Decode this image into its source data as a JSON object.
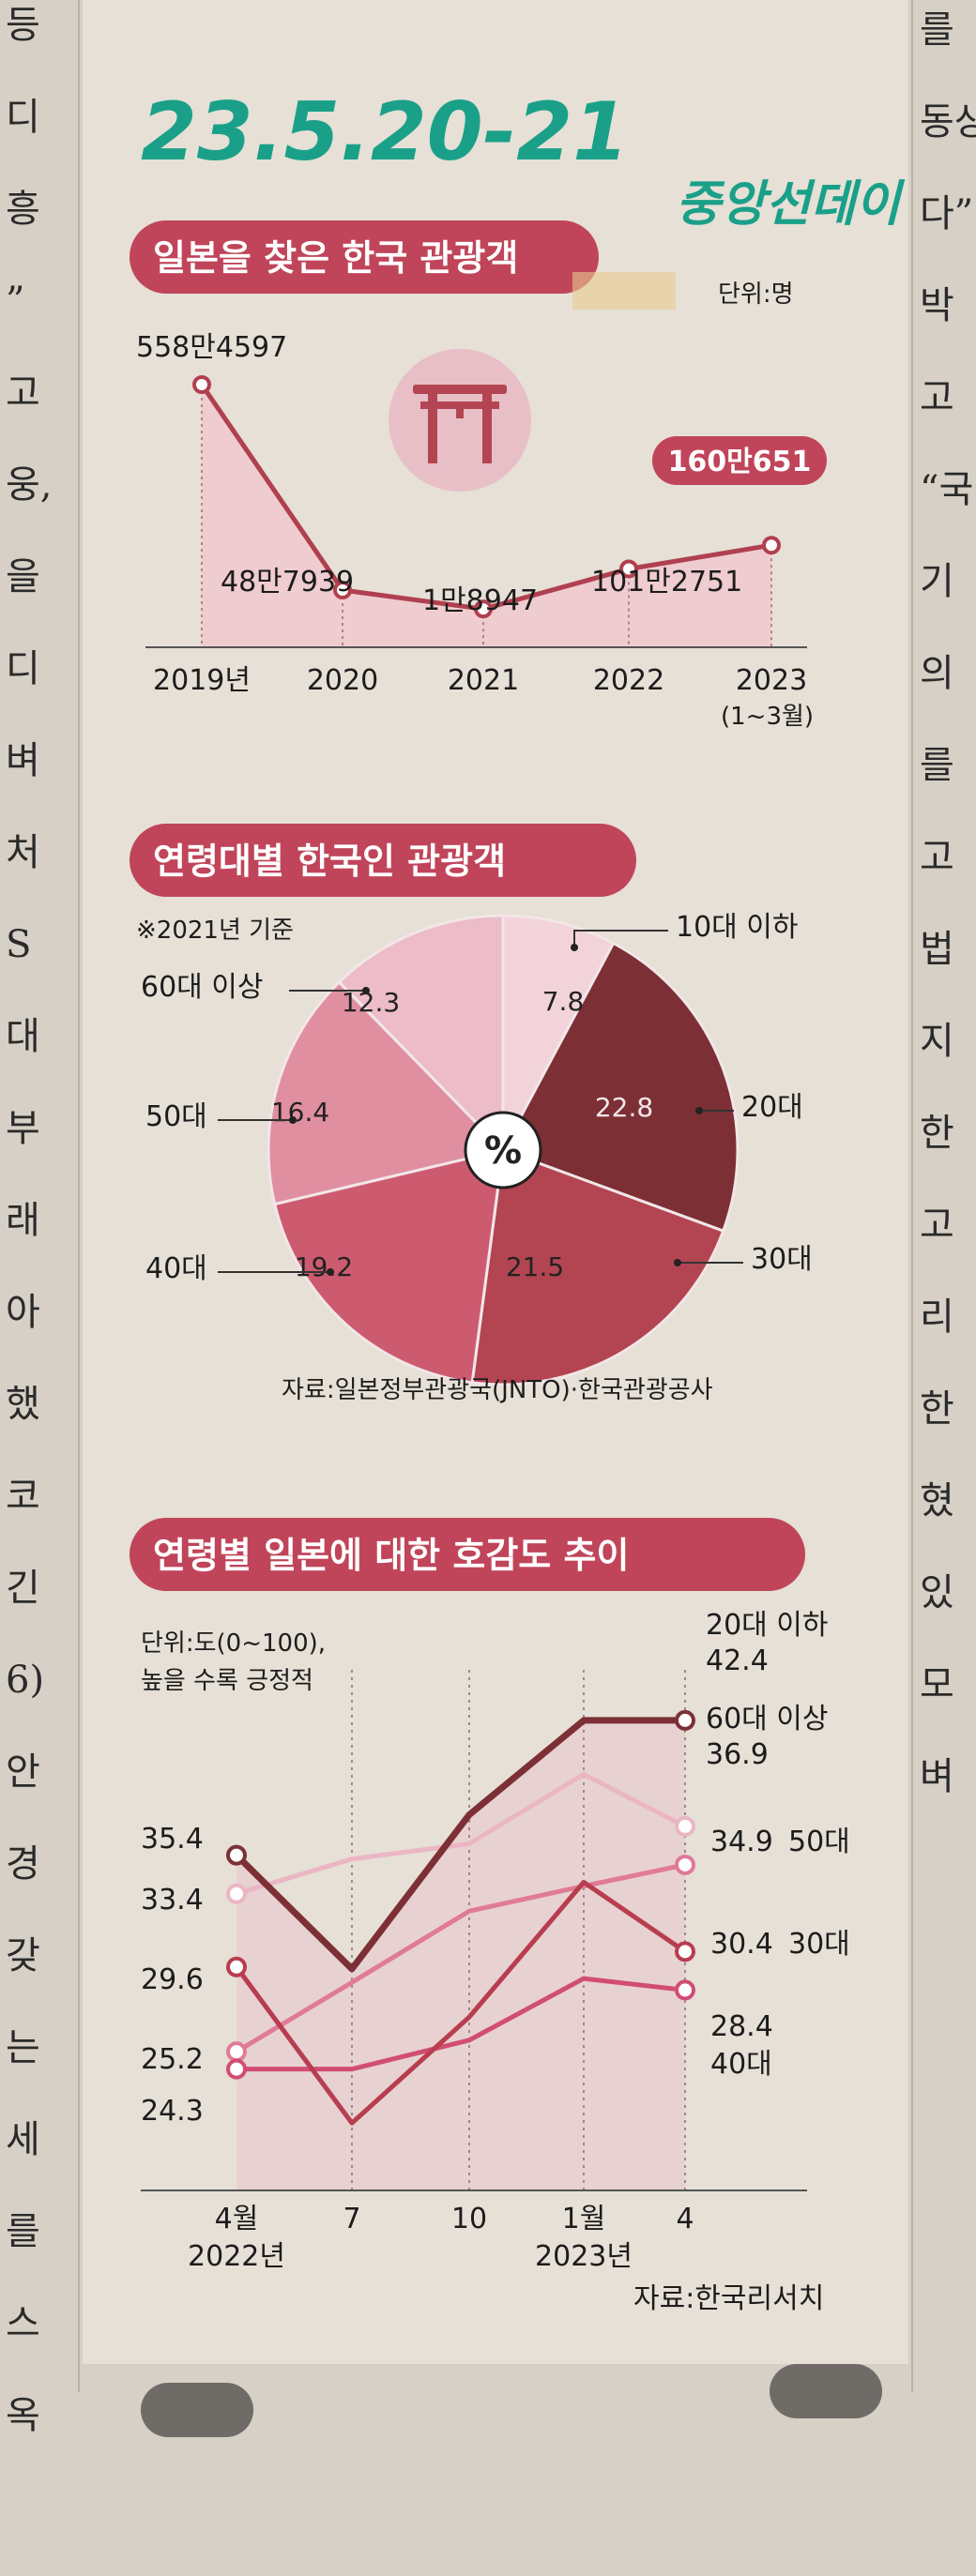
{
  "handwriting": {
    "date": "23.5.20-21",
    "paper": "중앙선데이"
  },
  "side_text_left": [
    "등",
    "디",
    "흥",
    "”",
    "고",
    "웅,",
    "을",
    "디",
    "벼",
    "처",
    "S",
    "대",
    "부",
    "래",
    "아",
    "했",
    "코",
    "긴",
    "6)",
    "안",
    "경",
    "갖",
    "는",
    "세",
    "를",
    "스",
    "옥"
  ],
  "side_text_right": [
    "를",
    "동상",
    "다”",
    "박",
    "고",
    "“국",
    "기",
    "의",
    "를",
    "고",
    "법",
    "지",
    "한",
    "고",
    "리",
    "한",
    "혔",
    "있",
    "모",
    "벼"
  ],
  "colors": {
    "title_bg": "#c0455a",
    "line_dark": "#7d2f33",
    "area_fill": "#f0c8cf",
    "pie_light": "#f3d3da",
    "pie_dark": "#7c3036"
  },
  "chart_data": [
    {
      "type": "area",
      "title": "일본을 찾은 한국 관광객",
      "unit": "단위:명",
      "icon": "torii-gate-icon",
      "categories": [
        "2019년",
        "2020",
        "2021",
        "2022",
        "2023"
      ],
      "category_note": "(1~3월)",
      "values": [
        5584597,
        487939,
        18947,
        1012751,
        1600651
      ],
      "value_labels": [
        "558만4597",
        "48만7939",
        "1만8947",
        "101만2751",
        "160만651"
      ],
      "highlight_index": 4
    },
    {
      "type": "pie",
      "title": "연령대별 한국인 관광객",
      "note": "※2021년 기준",
      "center_label": "%",
      "source": "자료:일본정부관광국(JNTO)·한국관광공사",
      "slices": [
        {
          "label": "10대 이하",
          "value": 7.8,
          "value_label": "7.8",
          "color": "#f3d3da"
        },
        {
          "label": "20대",
          "value": 22.8,
          "value_label": "22.8",
          "color": "#7c3036"
        },
        {
          "label": "30대",
          "value": 21.5,
          "value_label": "21.5",
          "color": "#b34552"
        },
        {
          "label": "40대",
          "value": 19.2,
          "value_label": "19.2",
          "color": "#cd5b70"
        },
        {
          "label": "50대",
          "value": 16.4,
          "value_label": "16.4",
          "color": "#e08fa1"
        },
        {
          "label": "60대 이상",
          "value": 12.3,
          "value_label": "12.3",
          "color": "#ecbcc8"
        }
      ]
    },
    {
      "type": "line",
      "title": "연령별 일본에 대한 호감도 추이",
      "unit_lines": [
        "단위:도(0~100),",
        "높을 수록 긍정적"
      ],
      "source": "자료:한국리서치",
      "x": [
        "4월",
        "7",
        "10",
        "1월",
        "4"
      ],
      "x_sub": [
        "2022년",
        "",
        "",
        "2023년",
        ""
      ],
      "ylim": [
        18,
        46
      ],
      "series": [
        {
          "name": "20대 이하",
          "values": [
            35.4,
            29.5,
            37.5,
            42.4,
            42.4
          ],
          "color": "#7c3036",
          "start_label": "35.4",
          "end_label": "42.4"
        },
        {
          "name": "60대 이상",
          "values": [
            33.4,
            35.2,
            36.0,
            39.6,
            36.9
          ],
          "color": "#ebb6c3",
          "start_label": "33.4",
          "end_label": "36.9"
        },
        {
          "name": "50대",
          "values": [
            25.2,
            28.8,
            32.5,
            33.8,
            34.9
          ],
          "color": "#e07b95",
          "start_label": "25.2",
          "end_label": "34.9"
        },
        {
          "name": "30대",
          "values": [
            29.6,
            21.5,
            27.0,
            34.0,
            30.4
          ],
          "color": "#b83d4f",
          "start_label": "29.6",
          "end_label": "30.4"
        },
        {
          "name": "40대",
          "values": [
            24.3,
            24.3,
            25.8,
            29.0,
            28.4
          ],
          "color": "#d14d73",
          "start_label": "24.3",
          "end_label": "28.4"
        }
      ]
    }
  ]
}
